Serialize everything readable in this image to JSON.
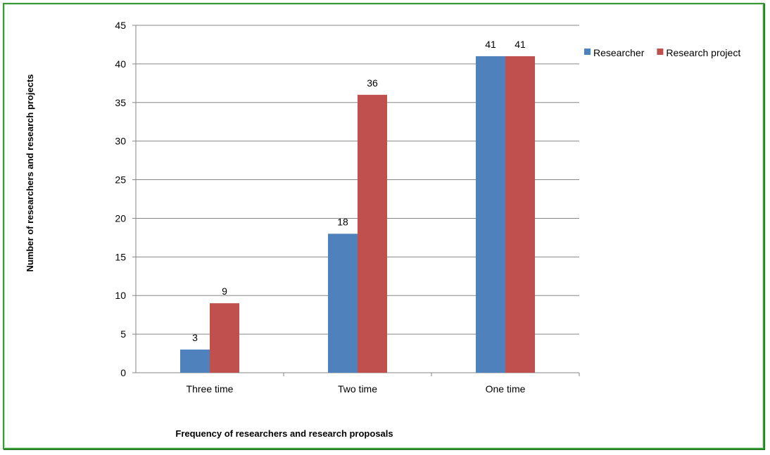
{
  "chart_data": {
    "type": "bar",
    "categories": [
      "Three time",
      "Two time",
      "One time"
    ],
    "series": [
      {
        "name": "Researcher",
        "values": [
          3,
          18,
          41
        ],
        "color": "#4f81bd"
      },
      {
        "name": "Research project",
        "values": [
          9,
          36,
          41
        ],
        "color": "#c0504d"
      }
    ],
    "xlabel": "Frequency of researchers and research proposals",
    "ylabel": "Number of researchers and research projects",
    "ylim": [
      0,
      45
    ],
    "yticks": [
      0,
      5,
      10,
      15,
      20,
      25,
      30,
      35,
      40,
      45
    ],
    "grid": true,
    "legend_position": "right"
  }
}
